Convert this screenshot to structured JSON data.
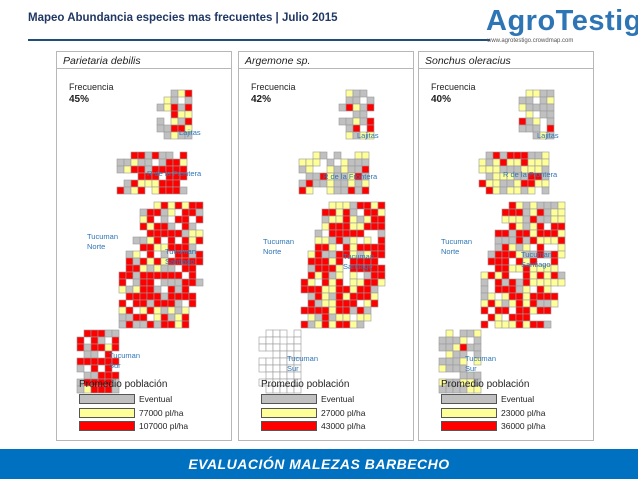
{
  "header": {
    "title": "Mapeo Abundancia especies mas frecuentes | Julio 2015"
  },
  "logo": {
    "name": "AgroTestigo",
    "url": "www.agrotestigo.crowdmap.com"
  },
  "legend_colors": {
    "eventual": "#c0c0c0",
    "medium": "#ffff99",
    "high": "#ff0000"
  },
  "regions": [
    "Lajitas",
    "R de la Frontera",
    "Tucuman Norte",
    "Tucuman Santiago",
    "Tucuman Sur"
  ],
  "panels": [
    {
      "species": "Parietaria debilis",
      "freq_label": "Frecuencia",
      "freq_value": "45%",
      "legend": {
        "title": "Promedio población",
        "eventual": "Eventual",
        "medium": "77000 pl/ha",
        "high": "107000 pl/ha"
      }
    },
    {
      "species": "Argemone sp.",
      "freq_label": "Frecuencia",
      "freq_value": "42%",
      "legend": {
        "title": "Promedio población",
        "eventual": "Eventual",
        "medium": "27000 pl/ha",
        "high": "43000 pl/ha"
      }
    },
    {
      "species": "Sonchus oleracius",
      "freq_label": "Frecuencia",
      "freq_value": "40%",
      "legend": {
        "title": "Promedio población",
        "eventual": "Eventual",
        "medium": "23000 pl/ha",
        "high": "36000 pl/ha"
      }
    }
  ],
  "footer": {
    "text": "EVALUACIÓN MALEZAS BARBECHO"
  }
}
